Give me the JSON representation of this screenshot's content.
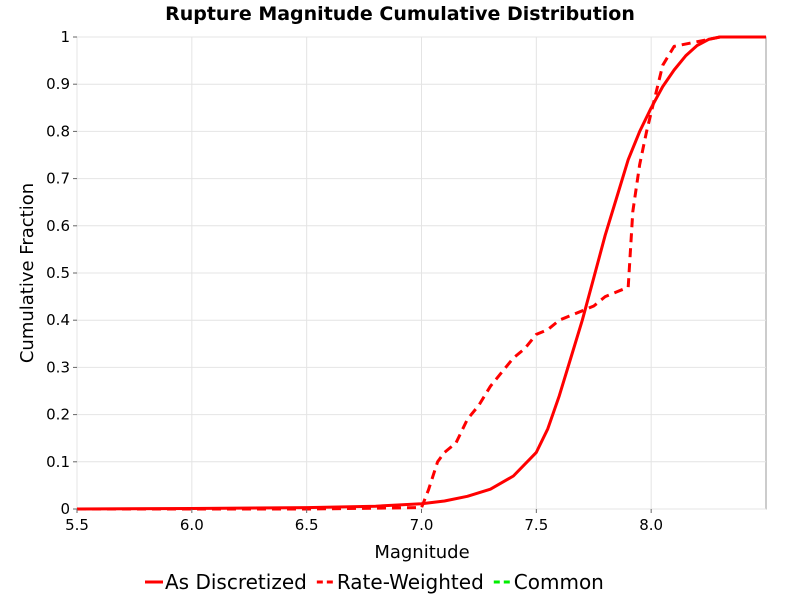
{
  "chart_data": {
    "type": "line",
    "title": "Rupture Magnitude Cumulative Distribution",
    "xlabel": "Magnitude",
    "ylabel": "Cumulative Fraction",
    "xlim": [
      5.5,
      8.5
    ],
    "ylim": [
      0,
      1
    ],
    "x_ticks": [
      "5.5",
      "6.0",
      "6.5",
      "7.0",
      "7.5",
      "8.0"
    ],
    "y_ticks": [
      "0",
      "0.1",
      "0.2",
      "0.3",
      "0.4",
      "0.5",
      "0.6",
      "0.7",
      "0.8",
      "0.9",
      "1"
    ],
    "grid": true,
    "legend_position": "bottom",
    "series": [
      {
        "name": "As Discretized",
        "color": "#ff0000",
        "style": "solid",
        "x": [
          5.5,
          6.0,
          6.5,
          6.8,
          7.0,
          7.1,
          7.2,
          7.3,
          7.4,
          7.5,
          7.55,
          7.6,
          7.65,
          7.7,
          7.75,
          7.8,
          7.85,
          7.9,
          7.95,
          8.0,
          8.05,
          8.1,
          8.15,
          8.2,
          8.25,
          8.3,
          8.4,
          8.5
        ],
        "y": [
          0.0,
          0.001,
          0.003,
          0.006,
          0.011,
          0.017,
          0.027,
          0.042,
          0.07,
          0.12,
          0.17,
          0.24,
          0.32,
          0.4,
          0.49,
          0.58,
          0.66,
          0.74,
          0.8,
          0.85,
          0.895,
          0.93,
          0.96,
          0.982,
          0.995,
          1.0,
          1.0,
          1.0
        ]
      },
      {
        "name": "Rate-Weighted",
        "color": "#ff0000",
        "style": "dashed",
        "x": [
          5.5,
          6.5,
          7.0,
          7.03,
          7.07,
          7.1,
          7.15,
          7.2,
          7.25,
          7.3,
          7.35,
          7.4,
          7.45,
          7.5,
          7.55,
          7.6,
          7.65,
          7.7,
          7.75,
          7.8,
          7.85,
          7.9,
          7.92,
          7.95,
          7.98,
          8.0,
          8.05,
          8.1,
          8.2,
          8.3,
          8.5
        ],
        "y": [
          0.0,
          0.0,
          0.003,
          0.04,
          0.1,
          0.12,
          0.14,
          0.19,
          0.22,
          0.26,
          0.29,
          0.32,
          0.34,
          0.37,
          0.38,
          0.4,
          0.41,
          0.42,
          0.43,
          0.45,
          0.46,
          0.47,
          0.63,
          0.73,
          0.8,
          0.84,
          0.94,
          0.98,
          0.99,
          1.0,
          1.0
        ]
      },
      {
        "name": "Common",
        "color": "#00ee00",
        "style": "dashed",
        "x": [],
        "y": []
      }
    ]
  }
}
